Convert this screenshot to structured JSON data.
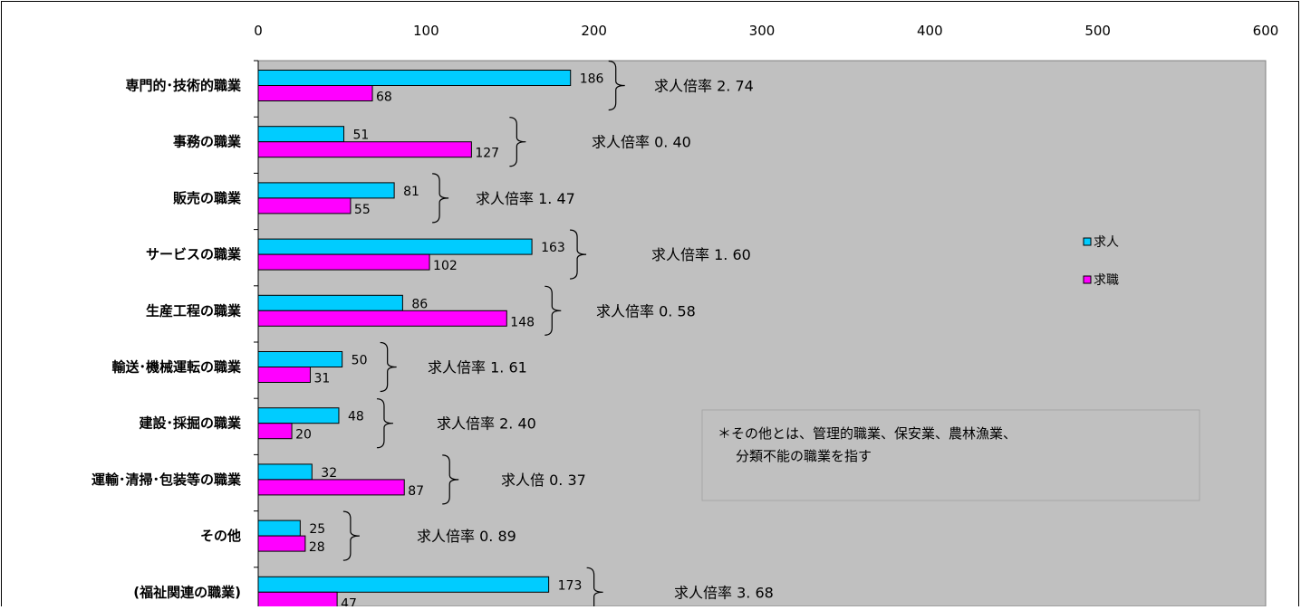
{
  "chart_data": {
    "type": "bar",
    "orientation": "horizontal",
    "title": "",
    "xlim": [
      0,
      600
    ],
    "x_ticks": [
      0,
      100,
      200,
      300,
      400,
      500,
      600
    ],
    "x_axis_position": "top",
    "grid": false,
    "categories": [
      "専門的･技術的職業",
      "事務の職業",
      "販売の職業",
      "サービスの職業",
      "生産工程の職業",
      "輸送･機械運転の職業",
      "建設･採掘の職業",
      "運輸･清掃･包装等の職業",
      "その他",
      "(福祉関連の職業)"
    ],
    "series": [
      {
        "name": "求人",
        "color": "#00ccff",
        "values": [
          186,
          51,
          81,
          163,
          86,
          50,
          48,
          32,
          25,
          173
        ]
      },
      {
        "name": "求職",
        "color": "#ff00ff",
        "values": [
          68,
          127,
          55,
          102,
          148,
          31,
          20,
          87,
          28,
          47
        ]
      }
    ],
    "annotations": [
      "求人倍率 2. 74",
      "求人倍率 0. 40",
      "求人倍率 1. 47",
      "求人倍率 1. 60",
      "求人倍率 0. 58",
      "求人倍率 1. 61",
      "求人倍率 2. 40",
      "求人倍 0. 37",
      "求人倍率 0. 89",
      "求人倍率 3. 68"
    ],
    "legend_position": "right",
    "note": [
      "＊その他とは、管理的職業、保安業、農林漁業、",
      "分類不能の職業を指す"
    ],
    "plot_background": "#c0c0c0"
  }
}
